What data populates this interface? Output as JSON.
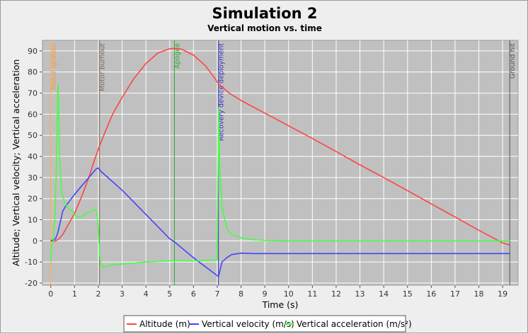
{
  "chart_data": {
    "type": "line",
    "title": "Simulation 2",
    "subtitle": "Vertical motion vs. time",
    "xlabel": "Time (s)",
    "ylabel": "Altitude; Vertical velocity; Vertical acceleration",
    "xlim": [
      -0.35,
      19.65
    ],
    "ylim": [
      -21,
      95
    ],
    "xticks": [
      0,
      1,
      2,
      3,
      4,
      5,
      6,
      7,
      8,
      9,
      10,
      11,
      12,
      13,
      14,
      15,
      16,
      17,
      18,
      19
    ],
    "yticks": [
      -20,
      -10,
      0,
      10,
      20,
      30,
      40,
      50,
      60,
      70,
      80,
      90
    ],
    "grid": true,
    "legend_position": "bottom",
    "colors": {
      "altitude": "#ff4444",
      "velocity": "#4444ff",
      "acceleration": "#44ff44",
      "plot_background": "#c0c0c0",
      "grid": "#ffffff"
    },
    "events": [
      {
        "label": "Motor ignition",
        "t": 0.0,
        "color": "#ff9933"
      },
      {
        "label": "Motor burnout",
        "t": 2.05,
        "color": "#7a6a5a"
      },
      {
        "label": "Apogee",
        "t": 5.2,
        "color": "#33aa33"
      },
      {
        "label": "Recovery device deployment",
        "t": 7.05,
        "color": "#3333bb"
      },
      {
        "label": "Ground hit",
        "t": 19.3,
        "color": "#555555"
      }
    ],
    "series": [
      {
        "name": "Altitude (m)",
        "color": "#ff4444",
        "x": [
          0,
          0.2,
          0.35,
          0.5,
          0.8,
          1.0,
          1.3,
          1.6,
          1.8,
          2.05,
          2.3,
          2.6,
          3.0,
          3.5,
          4.0,
          4.5,
          5.0,
          5.2,
          5.5,
          6.0,
          6.5,
          6.8,
          7.05,
          7.5,
          8.0,
          9.0,
          10.0,
          11.0,
          12.0,
          13.0,
          14.0,
          15.0,
          16.0,
          17.0,
          18.0,
          19.0,
          19.3
        ],
        "y": [
          0,
          0,
          1,
          3,
          9,
          13,
          21,
          30,
          37,
          45,
          52,
          60,
          68,
          77,
          84,
          89,
          91,
          91.2,
          90.8,
          88,
          83,
          78.5,
          74.5,
          70,
          66.5,
          60.5,
          54.5,
          48.5,
          42.3,
          36,
          30,
          23.8,
          17.5,
          11.3,
          5,
          -1,
          -2
        ]
      },
      {
        "name": "Vertical velocity (m/s)",
        "color": "#4444ff",
        "x": [
          0,
          0.2,
          0.3,
          0.4,
          0.5,
          0.6,
          0.8,
          1.0,
          1.3,
          1.6,
          1.9,
          2.0,
          2.1,
          2.5,
          3.0,
          4.0,
          5.0,
          5.2,
          6.0,
          7.0,
          7.05,
          7.2,
          7.4,
          7.6,
          8.0,
          8.5,
          9.0,
          19.3
        ],
        "y": [
          0,
          1,
          4,
          9,
          14,
          16,
          19,
          22,
          26,
          30,
          34,
          34.5,
          33,
          29,
          24,
          12.5,
          1,
          -0.5,
          -8,
          -16.5,
          -17,
          -10,
          -8,
          -6.5,
          -5.8,
          -6,
          -6,
          -6
        ]
      },
      {
        "name": "Vertical acceleration (m/s²)",
        "color": "#44ff44",
        "x": [
          0,
          0.02,
          0.1,
          0.18,
          0.25,
          0.3,
          0.33,
          0.37,
          0.45,
          0.55,
          0.7,
          0.9,
          1.1,
          1.3,
          1.5,
          1.7,
          1.8,
          1.9,
          1.95,
          2.0,
          2.05,
          2.1,
          2.2,
          2.5,
          3.0,
          4.0,
          5.0,
          6.0,
          7.0,
          7.03,
          7.06,
          7.1,
          7.2,
          7.4,
          7.6,
          8.0,
          8.5,
          9.0,
          10.0,
          19.3
        ],
        "y": [
          -10,
          -3,
          0,
          12,
          42,
          74,
          65,
          40,
          24,
          19,
          16,
          14,
          11,
          11.5,
          13,
          14,
          15,
          14.5,
          12,
          5,
          -5,
          -11,
          -12.5,
          -11.5,
          -11,
          -10,
          -9.5,
          -9.5,
          -9,
          30,
          63,
          35,
          16,
          6,
          3,
          1.5,
          0.5,
          0.2,
          0,
          0
        ]
      }
    ]
  }
}
